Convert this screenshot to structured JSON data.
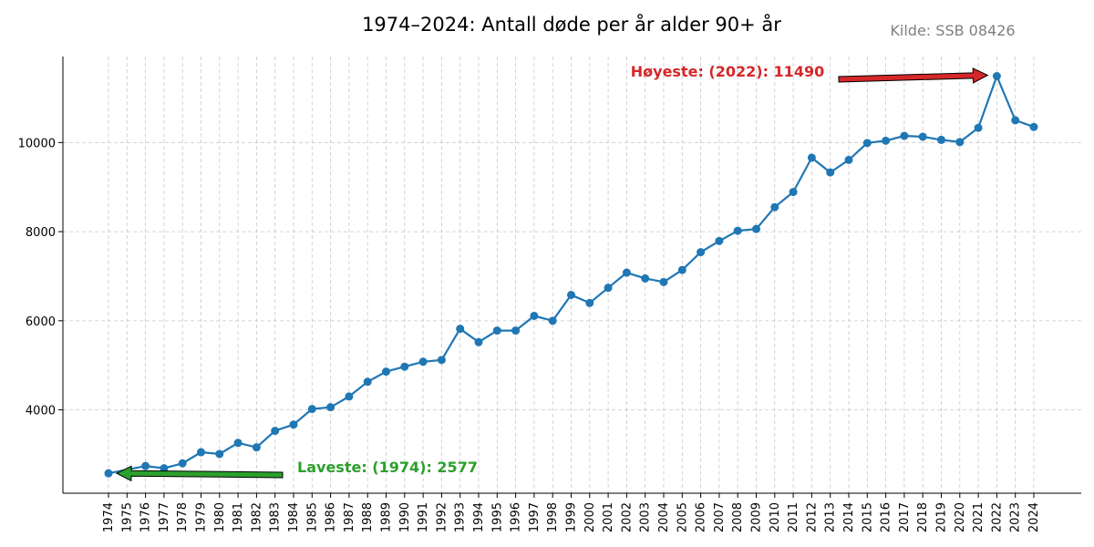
{
  "chart_data": {
    "type": "line",
    "title": "1974–2024: Antall døde per år alder 90+ år",
    "source": "Kilde: SSB 08426",
    "x": [
      "1974",
      "1975",
      "1976",
      "1977",
      "1978",
      "1979",
      "1980",
      "1981",
      "1982",
      "1983",
      "1984",
      "1985",
      "1986",
      "1987",
      "1988",
      "1989",
      "1990",
      "1991",
      "1992",
      "1993",
      "1994",
      "1995",
      "1996",
      "1997",
      "1998",
      "1999",
      "2000",
      "2001",
      "2002",
      "2003",
      "2004",
      "2005",
      "2006",
      "2007",
      "2008",
      "2009",
      "2010",
      "2011",
      "2012",
      "2013",
      "2014",
      "2015",
      "2016",
      "2017",
      "2018",
      "2019",
      "2020",
      "2021",
      "2022",
      "2023",
      "2024"
    ],
    "values": [
      2577,
      null,
      2740,
      2690,
      2800,
      3050,
      3010,
      3260,
      3160,
      3530,
      3670,
      4020,
      4060,
      4300,
      4630,
      4860,
      4970,
      5080,
      5120,
      5820,
      5520,
      5780,
      5780,
      6110,
      6000,
      6580,
      6400,
      6740,
      7080,
      6950,
      6870,
      7140,
      7540,
      7790,
      8020,
      8060,
      8550,
      8890,
      9660,
      9330,
      9610,
      9990,
      10040,
      10150,
      10130,
      10060,
      10010,
      10330,
      11490,
      10500,
      10350
    ],
    "yticks": [
      4000,
      6000,
      8000,
      10000
    ],
    "ylim": [
      2130,
      11930
    ],
    "xlabel": "",
    "ylabel": "",
    "grid": true,
    "colors": {
      "line": "#1f77b4",
      "max": "#d62728",
      "min": "#2ca02c",
      "grid": "#c8c8c8"
    },
    "annotations": {
      "max": {
        "text": "Høyeste: (2022): 11490",
        "year": "2022",
        "value": 11490
      },
      "min": {
        "text": "Laveste: (1974): 2577",
        "year": "1974",
        "value": 2577
      }
    }
  }
}
